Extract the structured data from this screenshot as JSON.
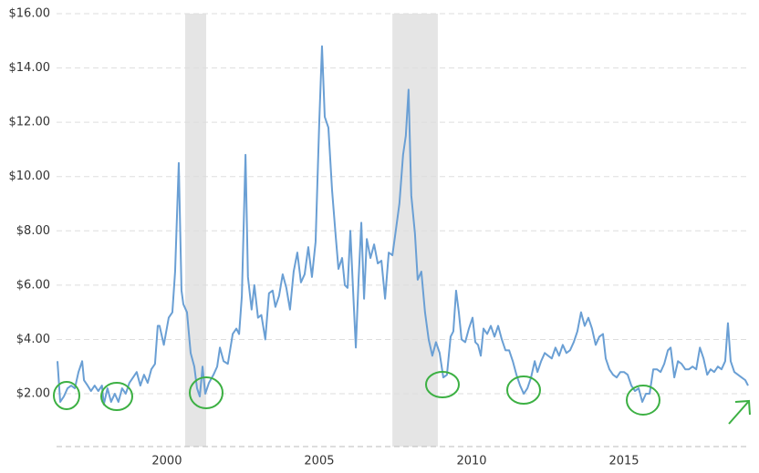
{
  "chart_data": {
    "type": "line",
    "x": [
      1996.41,
      1996.5,
      1996.62,
      1996.74,
      1996.86,
      1996.98,
      1997.1,
      1997.22,
      1997.28,
      1997.4,
      1997.51,
      1997.63,
      1997.75,
      1997.87,
      1997.93,
      1998.05,
      1998.17,
      1998.29,
      1998.41,
      1998.53,
      1998.65,
      1998.77,
      1998.89,
      1999.01,
      1999.13,
      1999.25,
      1999.37,
      1999.49,
      1999.61,
      1999.7,
      1999.76,
      1999.9,
      2000.06,
      2000.18,
      2000.27,
      2000.39,
      2000.48,
      2000.54,
      2000.66,
      2000.78,
      2000.9,
      2000.99,
      2001.08,
      2001.17,
      2001.26,
      2001.38,
      2001.53,
      2001.65,
      2001.74,
      2001.86,
      2002.0,
      2002.16,
      2002.28,
      2002.37,
      2002.46,
      2002.58,
      2002.66,
      2002.78,
      2002.87,
      2002.99,
      2003.1,
      2003.23,
      2003.35,
      2003.47,
      2003.56,
      2003.68,
      2003.8,
      2003.92,
      2004.04,
      2004.16,
      2004.28,
      2004.4,
      2004.52,
      2004.64,
      2004.76,
      2004.88,
      2005.0,
      2005.09,
      2005.18,
      2005.3,
      2005.42,
      2005.54,
      2005.63,
      2005.75,
      2005.84,
      2005.93,
      2006.02,
      2006.11,
      2006.2,
      2006.29,
      2006.38,
      2006.47,
      2006.56,
      2006.68,
      2006.8,
      2006.92,
      2007.04,
      2007.16,
      2007.28,
      2007.4,
      2007.51,
      2007.63,
      2007.75,
      2007.84,
      2007.93,
      2008.02,
      2008.14,
      2008.23,
      2008.35,
      2008.47,
      2008.59,
      2008.71,
      2008.83,
      2008.95,
      2009.07,
      2009.19,
      2009.31,
      2009.4,
      2009.49,
      2009.58,
      2009.67,
      2009.79,
      2009.91,
      2010.03,
      2010.12,
      2010.21,
      2010.3,
      2010.39,
      2010.51,
      2010.63,
      2010.75,
      2010.87,
      2010.99,
      2011.11,
      2011.23,
      2011.35,
      2011.47,
      2011.59,
      2011.71,
      2011.83,
      2011.95,
      2012.07,
      2012.16,
      2012.28,
      2012.4,
      2012.51,
      2012.63,
      2012.75,
      2012.87,
      2012.99,
      2013.11,
      2013.23,
      2013.35,
      2013.47,
      2013.59,
      2013.71,
      2013.83,
      2013.95,
      2014.07,
      2014.19,
      2014.31,
      2014.4,
      2014.52,
      2014.64,
      2014.76,
      2014.88,
      2015.0,
      2015.12,
      2015.24,
      2015.36,
      2015.48,
      2015.6,
      2015.72,
      2015.84,
      2015.96,
      2016.08,
      2016.2,
      2016.32,
      2016.44,
      2016.53,
      2016.65,
      2016.77,
      2016.89,
      2017.01,
      2017.13,
      2017.25,
      2017.37,
      2017.49,
      2017.61,
      2017.73,
      2017.84,
      2017.96,
      2018.08,
      2018.2,
      2018.32,
      2018.41,
      2018.5,
      2018.62,
      2018.74,
      2018.86,
      2018.98,
      2019.07
    ],
    "series": [
      {
        "color": "#6a9fd4",
        "values": [
          3.2,
          1.7,
          1.9,
          2.2,
          2.3,
          2.2,
          2.8,
          3.2,
          2.5,
          2.3,
          2.1,
          2.3,
          2.1,
          2.3,
          1.6,
          2.2,
          1.7,
          2.0,
          1.7,
          2.2,
          2.0,
          2.4,
          2.6,
          2.8,
          2.3,
          2.7,
          2.4,
          2.9,
          3.1,
          4.5,
          4.5,
          3.8,
          4.8,
          5.0,
          6.5,
          10.5,
          5.8,
          5.3,
          5.0,
          3.5,
          3.0,
          2.2,
          1.9,
          3.0,
          2.0,
          2.4,
          2.7,
          3.0,
          3.7,
          3.2,
          3.1,
          4.2,
          4.4,
          4.2,
          5.6,
          10.8,
          6.3,
          5.1,
          6.0,
          4.8,
          4.9,
          4.0,
          5.7,
          5.8,
          5.2,
          5.6,
          6.4,
          5.9,
          5.1,
          6.5,
          7.2,
          6.1,
          6.4,
          7.4,
          6.3,
          7.6,
          12.0,
          14.8,
          12.2,
          11.8,
          9.5,
          7.8,
          6.6,
          7.0,
          6.0,
          5.9,
          8.0,
          5.8,
          3.7,
          6.2,
          8.3,
          5.5,
          7.7,
          7.0,
          7.5,
          6.8,
          6.9,
          5.5,
          7.2,
          7.1,
          8.0,
          9.0,
          10.8,
          11.5,
          13.2,
          9.3,
          7.9,
          6.2,
          6.5,
          5.0,
          4.0,
          3.4,
          3.9,
          3.5,
          2.6,
          2.7,
          4.1,
          4.3,
          5.8,
          5.0,
          4.0,
          3.9,
          4.4,
          4.8,
          3.9,
          3.8,
          3.4,
          4.4,
          4.2,
          4.5,
          4.1,
          4.5,
          4.0,
          3.6,
          3.6,
          3.2,
          2.7,
          2.3,
          2.0,
          2.2,
          2.6,
          3.2,
          2.8,
          3.2,
          3.5,
          3.4,
          3.3,
          3.7,
          3.4,
          3.8,
          3.5,
          3.6,
          3.9,
          4.3,
          5.0,
          4.5,
          4.8,
          4.4,
          3.8,
          4.1,
          4.2,
          3.3,
          2.9,
          2.7,
          2.6,
          2.8,
          2.8,
          2.7,
          2.3,
          2.1,
          2.2,
          1.7,
          2.0,
          2.0,
          2.9,
          2.9,
          2.8,
          3.1,
          3.6,
          3.7,
          2.6,
          3.2,
          3.1,
          2.9,
          2.9,
          3.0,
          2.9,
          3.7,
          3.3,
          2.7,
          2.9,
          2.8,
          3.0,
          2.9,
          3.2,
          4.6,
          3.2,
          2.8,
          2.7,
          2.6,
          2.5,
          2.3
        ]
      }
    ],
    "xlim": [
      1996.38,
      2019.13
    ],
    "xticks": [
      2000,
      2005,
      2010,
      2015
    ],
    "ylim": [
      0,
      16
    ],
    "yticks": [
      {
        "value": 2,
        "label": "$2.00"
      },
      {
        "value": 4,
        "label": "$4.00"
      },
      {
        "value": 6,
        "label": "$6.00"
      },
      {
        "value": 8,
        "label": "$8.00"
      },
      {
        "value": 10,
        "label": "$10.00"
      },
      {
        "value": 12,
        "label": "$12.00"
      },
      {
        "value": 14,
        "label": "$14.00"
      },
      {
        "value": 16,
        "label": "$16.00"
      }
    ],
    "shaded_ranges": [
      [
        2000.6,
        2001.29
      ],
      [
        2007.4,
        2008.89
      ]
    ],
    "grid": true
  }
}
